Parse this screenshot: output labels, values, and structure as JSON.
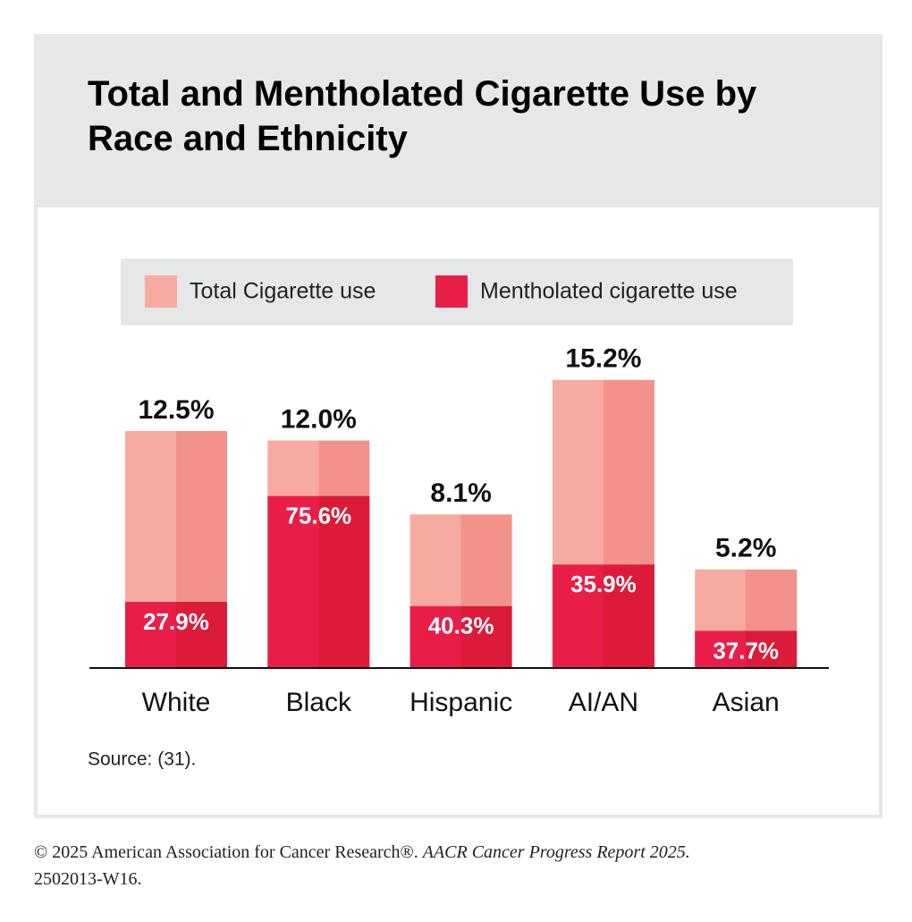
{
  "chart_data": {
    "type": "bar",
    "title": "Total and Mentholated Cigarette Use by Race and Ethnicity",
    "categories": [
      "White",
      "Black",
      "Hispanic",
      "AI/AN",
      "Asian"
    ],
    "series": [
      {
        "name": "Total Cigarette use",
        "color": "#f7aba0",
        "color_dark": "#f2928a",
        "values": [
          12.5,
          12.0,
          8.1,
          15.2,
          5.2
        ],
        "value_labels": [
          "12.5%",
          "12.0%",
          "8.1%",
          "15.2%",
          "5.2%"
        ]
      },
      {
        "name": "Mentholated cigarette use",
        "color": "#e91e48",
        "color_dark": "#dc1a3a",
        "values": [
          27.9,
          75.6,
          40.3,
          35.9,
          37.7
        ],
        "value_labels": [
          "27.9%",
          "75.6%",
          "40.3%",
          "35.9%",
          "37.7%"
        ]
      }
    ],
    "source": "Source: (31).",
    "footer": {
      "text": "© 2025 American Association for Cancer Research®.",
      "report": "AACR Cancer Progress Report 2025.",
      "code": "2502013-W16."
    }
  }
}
